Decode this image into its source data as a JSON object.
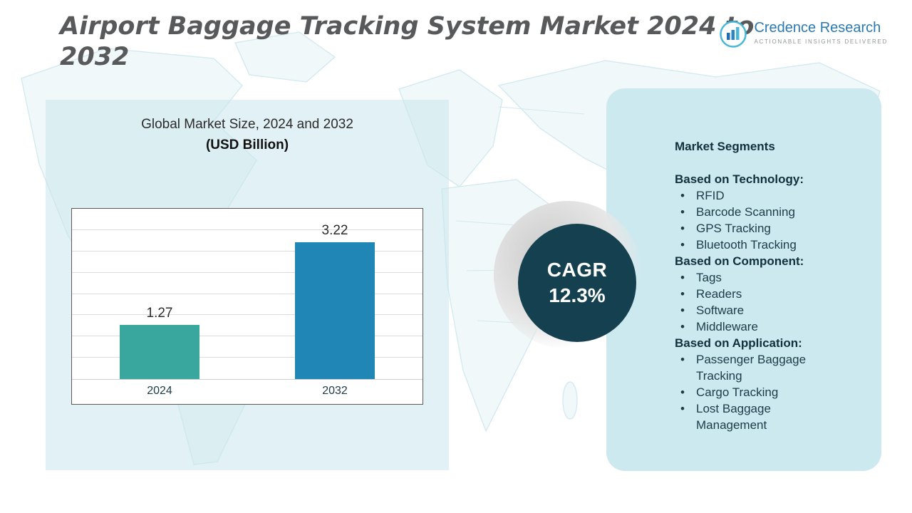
{
  "title": "Airport Baggage Tracking System Market 2024 to 2032",
  "logo": {
    "name": "Credence Research",
    "tagline": "Actionable Insights Delivered"
  },
  "cagr": {
    "label": "CAGR",
    "value": "12.3%"
  },
  "chart_data": {
    "type": "bar",
    "title": "Global Market Size, 2024 and 2032",
    "subtitle": "(USD Billion)",
    "categories": [
      "2024",
      "2032"
    ],
    "values": [
      1.27,
      3.22
    ],
    "value_labels": [
      "1.27",
      "3.22"
    ],
    "bar_colors": [
      "#3aa79f",
      "#1f86b5"
    ],
    "ylabel": "",
    "xlabel": "",
    "ylim": [
      0,
      4
    ],
    "grid": true,
    "legend": "none"
  },
  "segments": {
    "heading": "Market Segments",
    "groups": [
      {
        "label": "Based on Technology:",
        "items": [
          "RFID",
          "Barcode Scanning",
          "GPS Tracking",
          "Bluetooth Tracking"
        ]
      },
      {
        "label": "Based on Component:",
        "items": [
          "Tags",
          "Readers",
          "Software",
          "Middleware"
        ]
      },
      {
        "label": "Based on Application:",
        "items": [
          "Passenger Baggage Tracking",
          "Cargo Tracking",
          "Lost Baggage Management"
        ]
      }
    ]
  },
  "colors": {
    "bar_2024": "#3aa79f",
    "bar_2032": "#1f86b5",
    "cagr_circle": "#15404f",
    "panel_fill": "#cde9f0",
    "title_gray": "#58595b",
    "logo_blue": "#2a7ab2"
  }
}
